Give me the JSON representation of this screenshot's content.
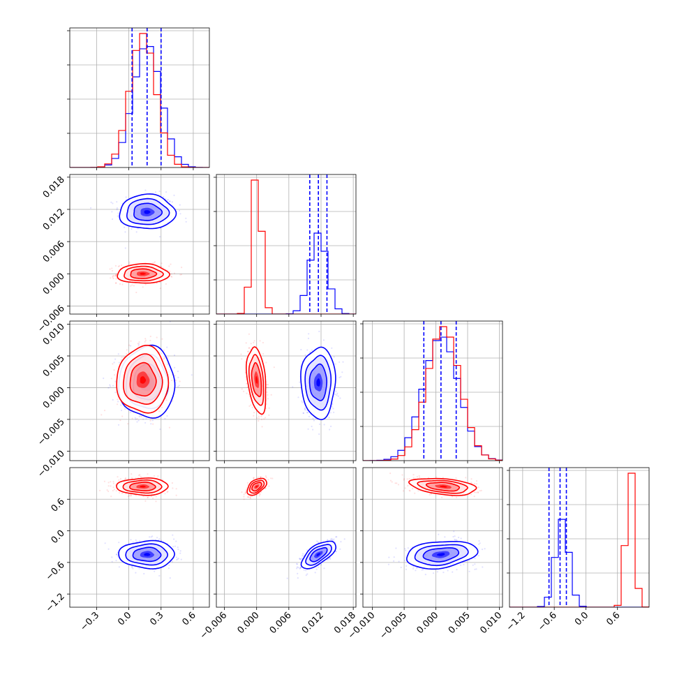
{
  "chart_data": {
    "type": "corner",
    "colors": {
      "blue": "#0000ff",
      "red": "#ff0000"
    },
    "grid": true,
    "params": [
      {
        "ticks": [
          -0.3,
          0.0,
          0.3,
          0.6
        ],
        "tick_labels": [
          "−0.3",
          "0.0",
          "0.3",
          "0.6"
        ],
        "range": [
          -0.55,
          0.75
        ]
      },
      {
        "ticks": [
          -0.006,
          0.0,
          0.006,
          0.012,
          0.018
        ],
        "tick_labels": [
          "−0.006",
          "0.000",
          "0.006",
          "0.012",
          "0.018"
        ],
        "range": [
          -0.0075,
          0.0185
        ]
      },
      {
        "ticks": [
          -0.01,
          -0.005,
          0.0,
          0.005,
          0.01
        ],
        "tick_labels": [
          "−0.010",
          "−0.005",
          "0.000",
          "0.005",
          "0.010"
        ],
        "range": [
          -0.0115,
          0.0105
        ]
      },
      {
        "ticks": [
          -1.2,
          -0.6,
          0.0,
          0.6
        ],
        "tick_labels": [
          "−1.2",
          "−0.6",
          "0.0",
          "0.6"
        ],
        "range": [
          -1.45,
          1.2
        ]
      }
    ],
    "series": [
      {
        "color": "blue",
        "mean": [
          0.17,
          0.0115,
          0.0008,
          -0.45
        ],
        "sd": [
          0.13,
          0.0016,
          0.0028,
          0.13
        ]
      },
      {
        "color": "red",
        "mean": [
          0.13,
          0.0,
          0.0012,
          0.84
        ],
        "sd": [
          0.12,
          0.0009,
          0.0026,
          0.08
        ]
      }
    ],
    "correlations": [
      {
        "series": "blue",
        "i": 3,
        "j": 1,
        "r": 0.65
      },
      {
        "series": "red",
        "i": 3,
        "j": 1,
        "r": 0.5
      },
      {
        "series": "red",
        "i": 2,
        "j": 1,
        "r": -0.35
      },
      {
        "series": "red",
        "i": 3,
        "j": 2,
        "r": -0.35
      },
      {
        "series": "blue",
        "i": 3,
        "j": 2,
        "r": 0.25
      }
    ],
    "quantile_lines": [
      {
        "param": 0,
        "values": [
          0.03,
          0.17,
          0.3
        ]
      },
      {
        "param": 1,
        "values": [
          0.0099,
          0.0115,
          0.0131
        ]
      },
      {
        "param": 2,
        "values": [
          -0.0019,
          0.0008,
          0.0032
        ]
      },
      {
        "param": 3,
        "values": [
          -0.7,
          -0.49,
          -0.37
        ]
      }
    ],
    "contour_levels_sigma": [
      0.5,
      1.0,
      1.5,
      2.0
    ]
  }
}
